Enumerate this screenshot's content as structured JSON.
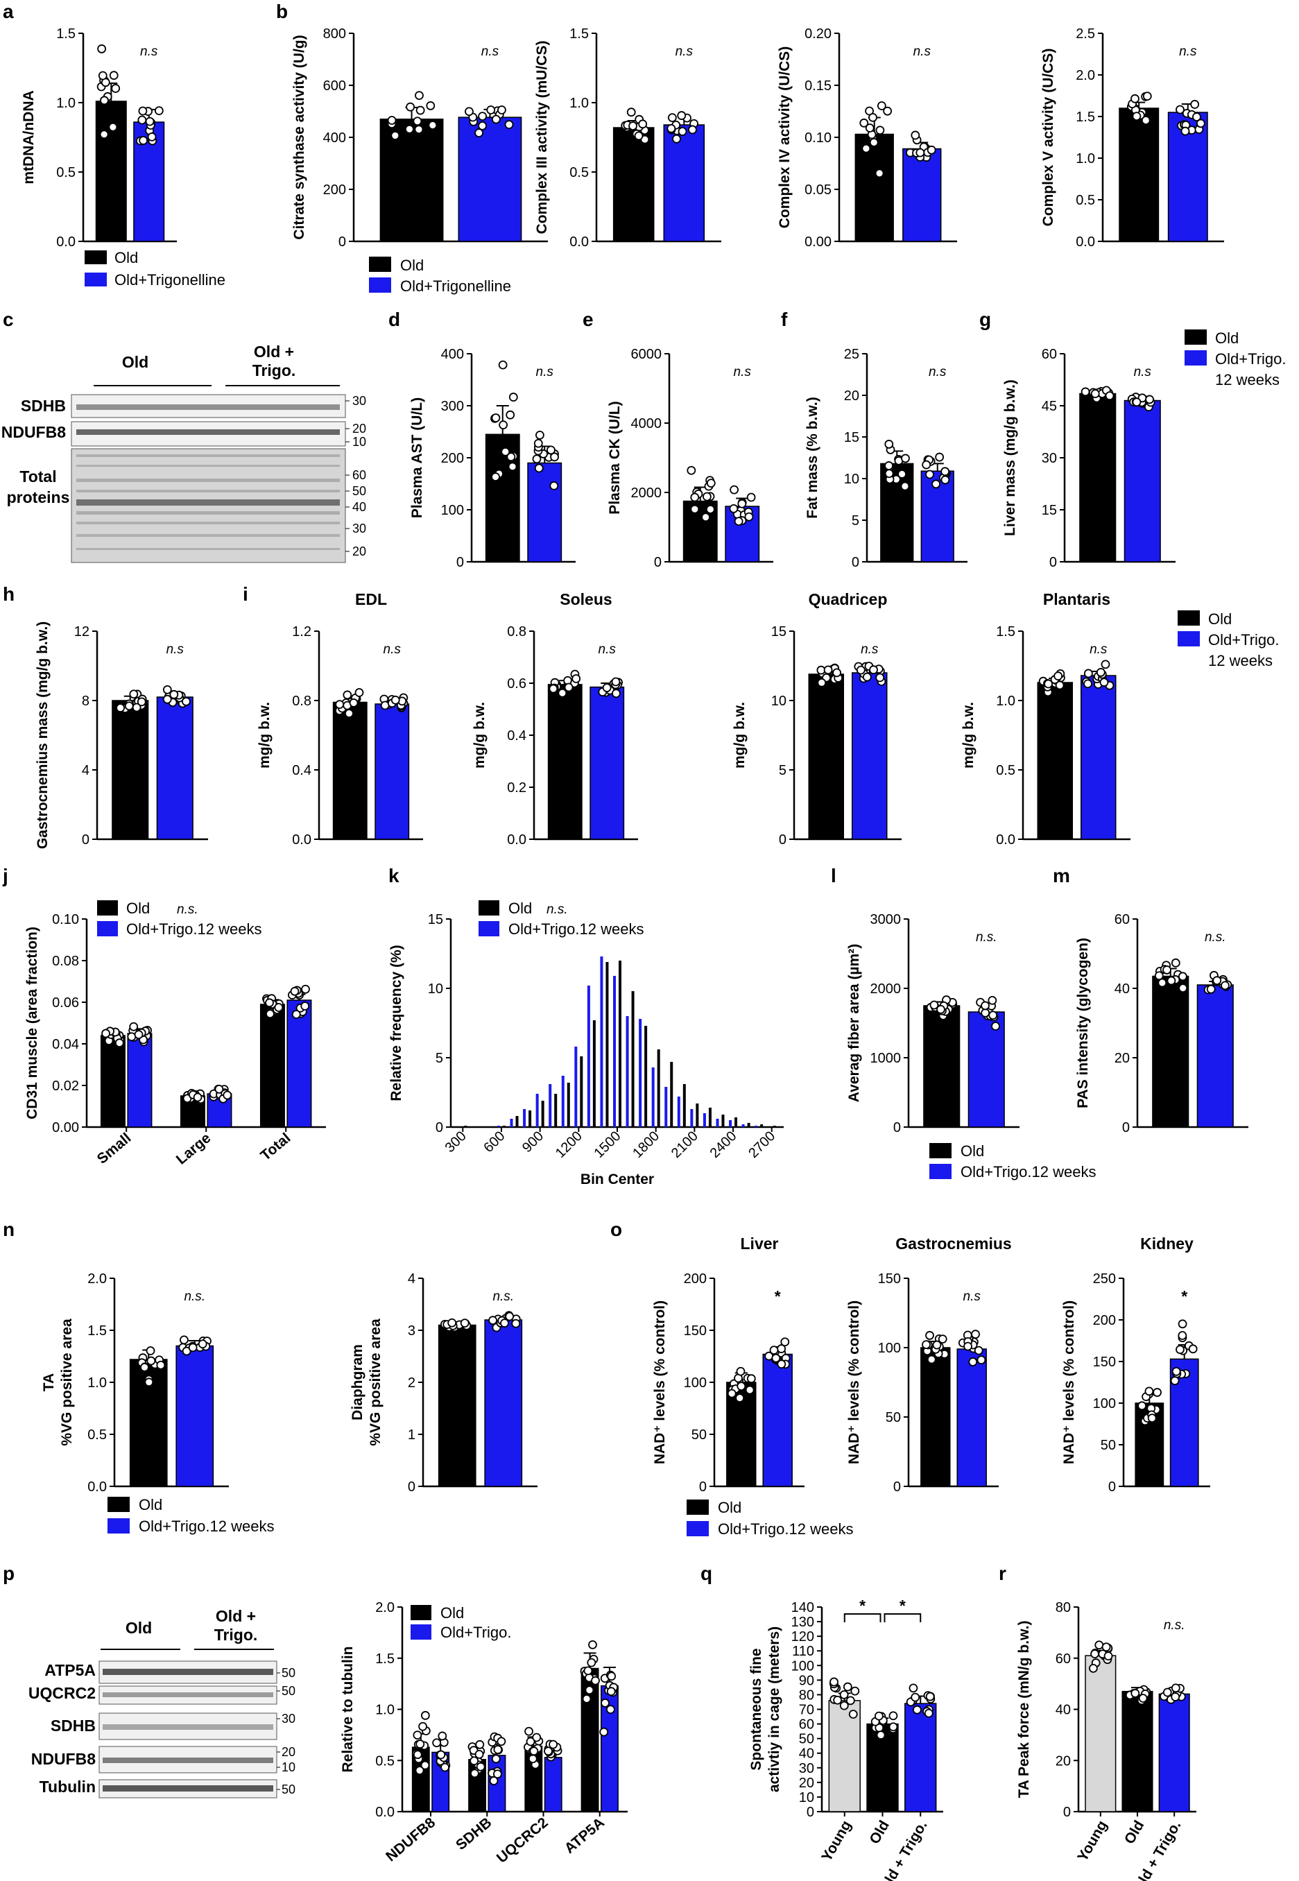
{
  "figure": {
    "colors": {
      "old": "#000000",
      "trigo": "#1a1aee",
      "young": "#d8d8d8"
    },
    "legend_old": "Old",
    "legend_trigo_full": "Old+Trigonelline",
    "legend_trigo_short": "Old+Trigo.",
    "legend_trigo_12w_a": "Old+Trigo.",
    "legend_trigo_12w_b": "12 weeks",
    "legend_trigo_12w_inline": "Old+Trigo.12 weeks"
  },
  "blots": {
    "c": {
      "group1": "Old",
      "group2_a": "Old +",
      "group2_b": "Trigo.",
      "bands": [
        "SDHB",
        "NDUFB8"
      ],
      "total_a": "Total",
      "total_b": "proteins",
      "mw": [
        "30",
        "20",
        "10",
        "60",
        "50",
        "40",
        "30",
        "20"
      ]
    },
    "p": {
      "group1": "Old",
      "group2_a": "Old +",
      "group2_b": "Trigo.",
      "bands": [
        "ATP5A",
        "UQCRC2",
        "SDHB",
        "NDUFB8",
        "Tubulin"
      ],
      "mw": [
        "50",
        "50",
        "30",
        "20",
        "10",
        "50"
      ]
    }
  },
  "chart_data": [
    {
      "id": "a",
      "panel_label": "a",
      "type": "bar",
      "ylabel": "mtDNA/nDNA",
      "ylim": [
        0,
        1.5
      ],
      "yticks": [
        "0.0",
        "0.5",
        "1.0",
        "1.5"
      ],
      "categories": [
        "Old",
        "Old+Trigonelline"
      ],
      "values": [
        1.01,
        0.86
      ],
      "errors": [
        0.13,
        0.09
      ],
      "annotations": [
        "",
        "n.s"
      ]
    },
    {
      "id": "b1",
      "panel_label": "b",
      "type": "bar",
      "ylabel": "Citrate synthase activity (U/g)",
      "ylim": [
        0,
        800
      ],
      "yticks": [
        "0",
        "200",
        "400",
        "600",
        "800"
      ],
      "categories": [
        "Old",
        "Old+Trigonelline"
      ],
      "values": [
        470,
        477
      ],
      "errors": [
        45,
        30
      ],
      "annotations": [
        "",
        "n.s"
      ]
    },
    {
      "id": "b2",
      "type": "bar",
      "ylabel": "Complex III activity (mU/CS)",
      "ylim": [
        0,
        1.5
      ],
      "yticks": [
        "0.0",
        "0.5",
        "1.0",
        "1.5"
      ],
      "categories": [
        "Old",
        "Old+Trigonelline"
      ],
      "values": [
        0.82,
        0.84
      ],
      "errors": [
        0.05,
        0.06
      ],
      "annotations": [
        "",
        "n.s"
      ]
    },
    {
      "id": "b3",
      "type": "bar",
      "ylabel": "Complex IV activity (U/CS)",
      "ylim": [
        0,
        0.2
      ],
      "yticks": [
        "0.00",
        "0.05",
        "0.10",
        "0.15",
        "0.20"
      ],
      "categories": [
        "Old",
        "Old+Trigonelline"
      ],
      "values": [
        0.103,
        0.089
      ],
      "errors": [
        0.016,
        0.006
      ],
      "annotations": [
        "",
        "n.s"
      ]
    },
    {
      "id": "b4",
      "type": "bar",
      "ylabel": "Complex V activity (U/CS)",
      "ylim": [
        0,
        2.5
      ],
      "yticks": [
        "0.0",
        "0.5",
        "1.0",
        "1.5",
        "2.0",
        "2.5"
      ],
      "categories": [
        "Old",
        "Old+Trigonelline"
      ],
      "values": [
        1.6,
        1.55
      ],
      "errors": [
        0.07,
        0.1
      ],
      "annotations": [
        "",
        "n.s"
      ]
    },
    {
      "id": "d",
      "panel_label": "d",
      "type": "bar",
      "ylabel": "Plasma AST (U/L)",
      "ylim": [
        0,
        400
      ],
      "yticks": [
        "0",
        "100",
        "200",
        "300",
        "400"
      ],
      "categories": [
        "Old",
        "Old+Trigo."
      ],
      "values": [
        245,
        190
      ],
      "errors": [
        55,
        32
      ],
      "annotations": [
        "",
        "n.s"
      ]
    },
    {
      "id": "e",
      "panel_label": "e",
      "type": "bar",
      "ylabel": "Plasma CK (U/L)",
      "ylim": [
        0,
        6000
      ],
      "yticks": [
        "0",
        "2000",
        "4000",
        "6000"
      ],
      "categories": [
        "Old",
        "Old+Trigo."
      ],
      "values": [
        1750,
        1600
      ],
      "errors": [
        400,
        230
      ],
      "annotations": [
        "",
        "n.s"
      ]
    },
    {
      "id": "f",
      "panel_label": "f",
      "type": "bar",
      "ylabel": "Fat mass (% b.w.)",
      "ylim": [
        0,
        25
      ],
      "yticks": [
        "0",
        "5",
        "10",
        "15",
        "20",
        "25"
      ],
      "categories": [
        "Old",
        "Old+Trigo."
      ],
      "values": [
        11.8,
        10.9
      ],
      "errors": [
        1.5,
        0.9
      ],
      "annotations": [
        "",
        "n.s"
      ]
    },
    {
      "id": "g",
      "panel_label": "g",
      "type": "bar",
      "ylabel": "Liver mass (mg/g b.w.)",
      "ylim": [
        0,
        60
      ],
      "yticks": [
        "0",
        "15",
        "30",
        "45",
        "60"
      ],
      "categories": [
        "Old",
        "Old+Trigo."
      ],
      "values": [
        48.5,
        46.5
      ],
      "errors": [
        0.8,
        1.2
      ],
      "annotations": [
        "",
        "n.s"
      ]
    },
    {
      "id": "h",
      "panel_label": "h",
      "type": "bar",
      "ylabel": "Gastrocnemius mass (mg/g b.w.)",
      "ylim": [
        0,
        12
      ],
      "yticks": [
        "0",
        "4",
        "8",
        "12"
      ],
      "categories": [
        "Old",
        "Old+Trigo."
      ],
      "values": [
        8.0,
        8.2
      ],
      "errors": [
        0.25,
        0.25
      ],
      "annotations": [
        "",
        "n.s"
      ]
    },
    {
      "id": "i1",
      "panel_label": "i",
      "type": "bar",
      "title": "EDL",
      "ylabel": "mg/g b.w.",
      "ylim": [
        0,
        1.2
      ],
      "yticks": [
        "0.0",
        "0.4",
        "0.8",
        "1.2"
      ],
      "categories": [
        "Old",
        "Old+Trigo."
      ],
      "values": [
        0.79,
        0.78
      ],
      "errors": [
        0.03,
        0.02
      ],
      "annotations": [
        "",
        "n.s"
      ]
    },
    {
      "id": "i2",
      "type": "bar",
      "title": "Soleus",
      "ylabel": "mg/g b.w.",
      "ylim": [
        0,
        0.8
      ],
      "yticks": [
        "0.0",
        "0.2",
        "0.4",
        "0.6",
        "0.8"
      ],
      "categories": [
        "Old",
        "Old+Trigo."
      ],
      "values": [
        0.595,
        0.585
      ],
      "errors": [
        0.015,
        0.015
      ],
      "annotations": [
        "",
        "n.s"
      ]
    },
    {
      "id": "i3",
      "type": "bar",
      "title": "Quadricep",
      "ylabel": "mg/g b.w.",
      "ylim": [
        0,
        15
      ],
      "yticks": [
        "0",
        "5",
        "10",
        "15"
      ],
      "categories": [
        "Old",
        "Old+Trigo."
      ],
      "values": [
        11.9,
        12.0
      ],
      "errors": [
        0.35,
        0.3
      ],
      "annotations": [
        "",
        "n.s"
      ]
    },
    {
      "id": "i4",
      "type": "bar",
      "title": "Plantaris",
      "ylabel": "mg/g b.w.",
      "ylim": [
        0,
        1.5
      ],
      "yticks": [
        "0.0",
        "0.5",
        "1.0",
        "1.5"
      ],
      "categories": [
        "Old",
        "Old+Trigo."
      ],
      "values": [
        1.13,
        1.18
      ],
      "errors": [
        0.03,
        0.03
      ],
      "annotations": [
        "",
        "n.s"
      ]
    },
    {
      "id": "j",
      "panel_label": "j",
      "type": "bar",
      "ylabel": "CD31 muscle (area fraction)",
      "ylim": [
        0,
        0.1
      ],
      "yticks": [
        "0.00",
        "0.02",
        "0.04",
        "0.06",
        "0.08",
        "0.10"
      ],
      "categories": [
        "Small",
        "Large",
        "Total"
      ],
      "series": [
        {
          "name": "Old",
          "values": [
            0.044,
            0.015,
            0.059
          ],
          "errors": [
            0.0018,
            0.001,
            0.0022
          ]
        },
        {
          "name": "Old+Trigo.12 weeks",
          "values": [
            0.045,
            0.016,
            0.061
          ],
          "errors": [
            0.0022,
            0.001,
            0.0028
          ]
        }
      ],
      "annotation": "n.s."
    },
    {
      "id": "k",
      "panel_label": "k",
      "type": "bar",
      "subtype": "histogram",
      "xlabel": "Bin Center",
      "ylabel": "Relative frequency (%)",
      "ylim": [
        0,
        15
      ],
      "yticks": [
        "0",
        "5",
        "10",
        "15"
      ],
      "xticks": [
        "300",
        "600",
        "900",
        "1200",
        "1500",
        "1800",
        "2100",
        "2400",
        "2700"
      ],
      "bins": [
        300,
        400,
        500,
        600,
        700,
        800,
        900,
        1000,
        1100,
        1200,
        1300,
        1400,
        1500,
        1600,
        1700,
        1800,
        1900,
        2000,
        2100,
        2200,
        2300,
        2400,
        2500,
        2600,
        2700
      ],
      "series": [
        {
          "name": "Old",
          "values": [
            0.1,
            0,
            0,
            0.1,
            0.8,
            1.2,
            1.9,
            2.4,
            3.2,
            5.1,
            7.7,
            11.9,
            12.0,
            9.8,
            7.3,
            5.6,
            4.7,
            3.1,
            1.7,
            1.4,
            0.9,
            0.7,
            0.3,
            0.2,
            0.1
          ]
        },
        {
          "name": "Old+Trigo.12 weeks",
          "values": [
            0,
            0,
            0,
            0.1,
            0.6,
            1.3,
            2.4,
            3.1,
            3.7,
            5.8,
            10.2,
            12.3,
            10.9,
            8.0,
            7.8,
            4.3,
            2.9,
            2.2,
            1.3,
            1.0,
            0.6,
            0.5,
            0.2,
            0.1,
            0
          ]
        }
      ],
      "annotation": "n.s."
    },
    {
      "id": "l",
      "panel_label": "l",
      "type": "bar",
      "ylabel": "Averag fiber area (µm²)",
      "ylim": [
        0,
        3000
      ],
      "yticks": [
        "0",
        "1000",
        "2000",
        "3000"
      ],
      "categories": [
        "Old",
        "Old+Trigo.12 weeks"
      ],
      "values": [
        1750,
        1660
      ],
      "errors": [
        55,
        90
      ],
      "annotations": [
        "",
        "n.s."
      ]
    },
    {
      "id": "m",
      "panel_label": "m",
      "type": "bar",
      "ylabel": "PAS intensity (glycogen)",
      "ylim": [
        0,
        60
      ],
      "yticks": [
        "0",
        "20",
        "40",
        "60"
      ],
      "categories": [
        "Old",
        "Old+Trigo.12 weeks"
      ],
      "values": [
        43.5,
        41.0
      ],
      "errors": [
        2.2,
        1.0
      ],
      "annotations": [
        "",
        "n.s."
      ]
    },
    {
      "id": "n1",
      "panel_label": "n",
      "type": "bar",
      "ylabel": "TA",
      "ylabel2": "%VG positive area",
      "ylim": [
        0,
        2.0
      ],
      "yticks": [
        "0.0",
        "0.5",
        "1.0",
        "1.5",
        "2.0"
      ],
      "categories": [
        "Old",
        "Old+Trigo.12 weeks"
      ],
      "values": [
        1.22,
        1.35
      ],
      "errors": [
        0.09,
        0.05
      ],
      "annotations": [
        "",
        "n.s."
      ]
    },
    {
      "id": "n2",
      "type": "bar",
      "ylabel": "Diaphgram",
      "ylabel2": "%VG positive area",
      "ylim": [
        0,
        4
      ],
      "yticks": [
        "0",
        "1",
        "2",
        "3",
        "4"
      ],
      "categories": [
        "Old",
        "Old+Trigo.12 weeks"
      ],
      "values": [
        3.1,
        3.2
      ],
      "errors": [
        0.04,
        0.06
      ],
      "annotations": [
        "",
        "n.s."
      ]
    },
    {
      "id": "o1",
      "panel_label": "o",
      "type": "bar",
      "title": "Liver",
      "ylabel": "NAD⁺ levels (% control)",
      "ylim": [
        0,
        200
      ],
      "yticks": [
        "0",
        "50",
        "100",
        "150",
        "200"
      ],
      "categories": [
        "Old",
        "Old+Trigo.12 weeks"
      ],
      "values": [
        100,
        127
      ],
      "errors": [
        9,
        7
      ],
      "annotations": [
        "",
        "*"
      ]
    },
    {
      "id": "o2",
      "type": "bar",
      "title": "Gastrocnemius",
      "ylabel": "NAD⁺ levels (% control)",
      "ylim": [
        0,
        150
      ],
      "yticks": [
        "0",
        "50",
        "100",
        "150"
      ],
      "categories": [
        "Old",
        "Old+Trigo.12 weeks"
      ],
      "values": [
        100,
        99
      ],
      "errors": [
        4.5,
        6
      ],
      "annotations": [
        "",
        "n.s"
      ]
    },
    {
      "id": "o3",
      "type": "bar",
      "title": "Kidney",
      "ylabel": "NAD⁺ levels (% control)",
      "ylim": [
        0,
        250
      ],
      "yticks": [
        "0",
        "50",
        "100",
        "150",
        "200",
        "250"
      ],
      "categories": [
        "Old",
        "Old+Trigo.12 weeks"
      ],
      "values": [
        100,
        153
      ],
      "errors": [
        10,
        17
      ],
      "annotations": [
        "",
        "*"
      ]
    },
    {
      "id": "p",
      "panel_label": "p",
      "type": "bar",
      "ylabel": "Relative to tubulin",
      "ylim": [
        0,
        2.0
      ],
      "yticks": [
        "0.0",
        "0.5",
        "1.0",
        "1.5",
        "2.0"
      ],
      "categories": [
        "NDUFB8",
        "SDHB",
        "UQCRC2",
        "ATP5A"
      ],
      "series": [
        {
          "name": "Old",
          "values": [
            0.63,
            0.51,
            0.64,
            1.4
          ],
          "errors": [
            0.13,
            0.09,
            0.09,
            0.15
          ]
        },
        {
          "name": "Old+Trigo.",
          "values": [
            0.58,
            0.55,
            0.53,
            1.23
          ],
          "errors": [
            0.09,
            0.11,
            0.07,
            0.18
          ]
        }
      ]
    },
    {
      "id": "q",
      "panel_label": "q",
      "type": "bar",
      "ylabel": "Spontaneous fine",
      "ylabel2": "activtiy in cage (meters)",
      "ylim": [
        0,
        140
      ],
      "yticks": [
        "0",
        "10",
        "20",
        "30",
        "40",
        "50",
        "60",
        "70",
        "80",
        "90",
        "100",
        "110",
        "120",
        "130",
        "140"
      ],
      "categories": [
        "Young",
        "Old",
        "Old + Trigo."
      ],
      "values": [
        76,
        60,
        74
      ],
      "errors": [
        5,
        4,
        5
      ],
      "significance": [
        "*",
        "*"
      ]
    },
    {
      "id": "r",
      "panel_label": "r",
      "type": "bar",
      "ylabel": "TA Peak force (mN/g b.w.)",
      "ylim": [
        0,
        80
      ],
      "yticks": [
        "0",
        "20",
        "40",
        "60",
        "80"
      ],
      "categories": [
        "Young",
        "Old",
        "Old + Trigo."
      ],
      "values": [
        61,
        47,
        46
      ],
      "errors": [
        2,
        1.5,
        1.5
      ],
      "annotations": [
        "",
        "",
        "n.s."
      ]
    }
  ]
}
